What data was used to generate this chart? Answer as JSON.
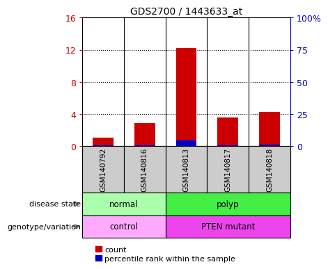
{
  "title": "GDS2700 / 1443633_at",
  "samples": [
    "GSM140792",
    "GSM140816",
    "GSM140813",
    "GSM140817",
    "GSM140818"
  ],
  "count_values": [
    1.0,
    2.8,
    12.2,
    3.5,
    4.2
  ],
  "percentile_values": [
    0.5,
    0.5,
    4.0,
    0.5,
    1.0
  ],
  "ylim_left": [
    0,
    16
  ],
  "ylim_right": [
    0,
    100
  ],
  "yticks_left": [
    0,
    4,
    8,
    12,
    16
  ],
  "ytick_labels_left": [
    "0",
    "4",
    "8",
    "12",
    "16"
  ],
  "ytick_labels_right": [
    "0",
    "25",
    "50",
    "75",
    "100%"
  ],
  "bar_color_red": "#cc0000",
  "bar_color_blue": "#0000cc",
  "bar_width": 0.5,
  "disease_groups": [
    {
      "label": "normal",
      "start": 0,
      "end": 2,
      "color": "#aaffaa"
    },
    {
      "label": "polyp",
      "start": 2,
      "end": 5,
      "color": "#44ee44"
    }
  ],
  "genotype_groups": [
    {
      "label": "control",
      "start": 0,
      "end": 2,
      "color": "#ffaaff"
    },
    {
      "label": "PTEN mutant",
      "start": 2,
      "end": 5,
      "color": "#ee44ee"
    }
  ],
  "left_label_disease": "disease state",
  "left_label_genotype": "genotype/variation",
  "legend_count": "count",
  "legend_percentile": "percentile rank within the sample",
  "left_axis_color": "#cc0000",
  "right_axis_color": "#0000cc",
  "sample_bg_color": "#cccccc",
  "grid_color": "black",
  "separator_color": "black"
}
